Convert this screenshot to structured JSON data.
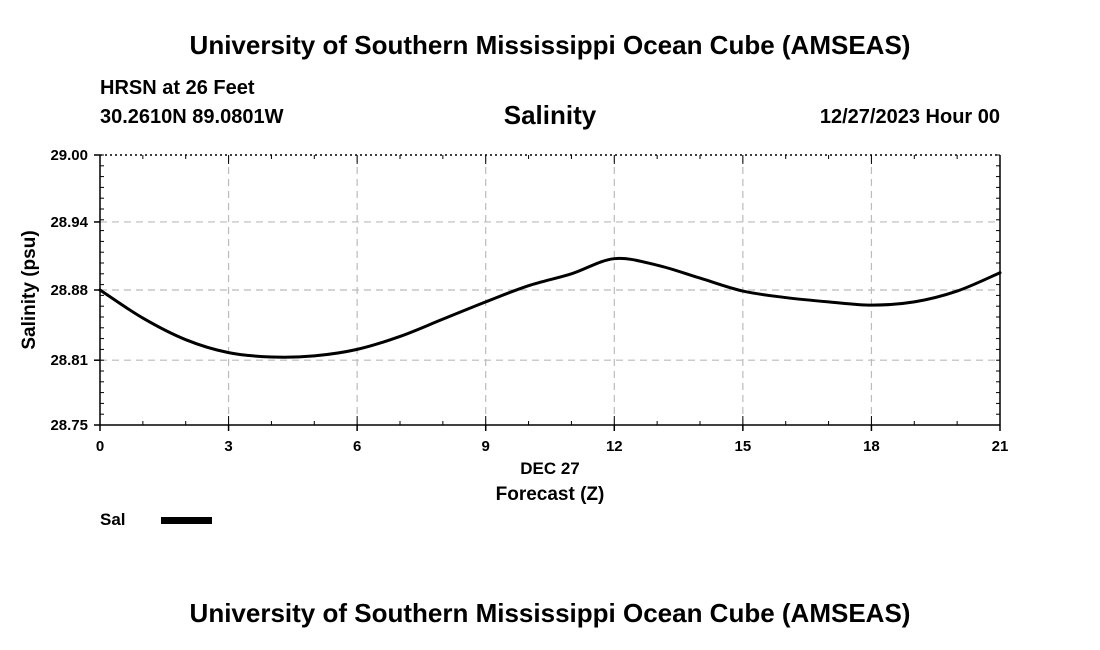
{
  "header": {
    "title": "University of Southern Mississippi Ocean Cube (AMSEAS)",
    "station": "HRSN at 26 Feet",
    "coordinates": "30.2610N  89.0801W",
    "parameter": "Salinity",
    "datetime": "12/27/2023 Hour 00"
  },
  "footer": {
    "title": "University of Southern Mississippi Ocean Cube (AMSEAS)"
  },
  "legend": {
    "label": "Sal"
  },
  "chart_data": {
    "type": "line",
    "title": "Salinity",
    "xlabel": "Forecast (Z)",
    "xlabel_date": "DEC 27",
    "ylabel": "Salinity (psu)",
    "xlim": [
      0,
      21
    ],
    "ylim": [
      28.75,
      29.0
    ],
    "x_ticks": [
      0,
      3,
      6,
      9,
      12,
      15,
      18,
      21
    ],
    "x_tick_labels": [
      "0",
      "3",
      "6",
      "9",
      "12",
      "15",
      "18",
      "21"
    ],
    "y_ticks": [
      28.75,
      28.81,
      28.875,
      28.938,
      29.0
    ],
    "y_tick_labels": [
      "28.75",
      "28.81",
      "28.88",
      "28.94",
      "29.00"
    ],
    "grid": true,
    "line_color": "#000000",
    "series": [
      {
        "name": "Sal",
        "x": [
          0,
          1,
          2,
          3,
          4,
          5,
          6,
          7,
          8,
          9,
          10,
          11,
          12,
          13,
          14,
          15,
          16,
          17,
          18,
          19,
          20,
          21
        ],
        "y": [
          28.875,
          28.849,
          28.829,
          28.817,
          28.813,
          28.814,
          28.82,
          28.832,
          28.848,
          28.864,
          28.879,
          28.89,
          28.904,
          28.898,
          28.886,
          28.874,
          28.868,
          28.864,
          28.861,
          28.864,
          28.874,
          28.891
        ]
      }
    ]
  }
}
